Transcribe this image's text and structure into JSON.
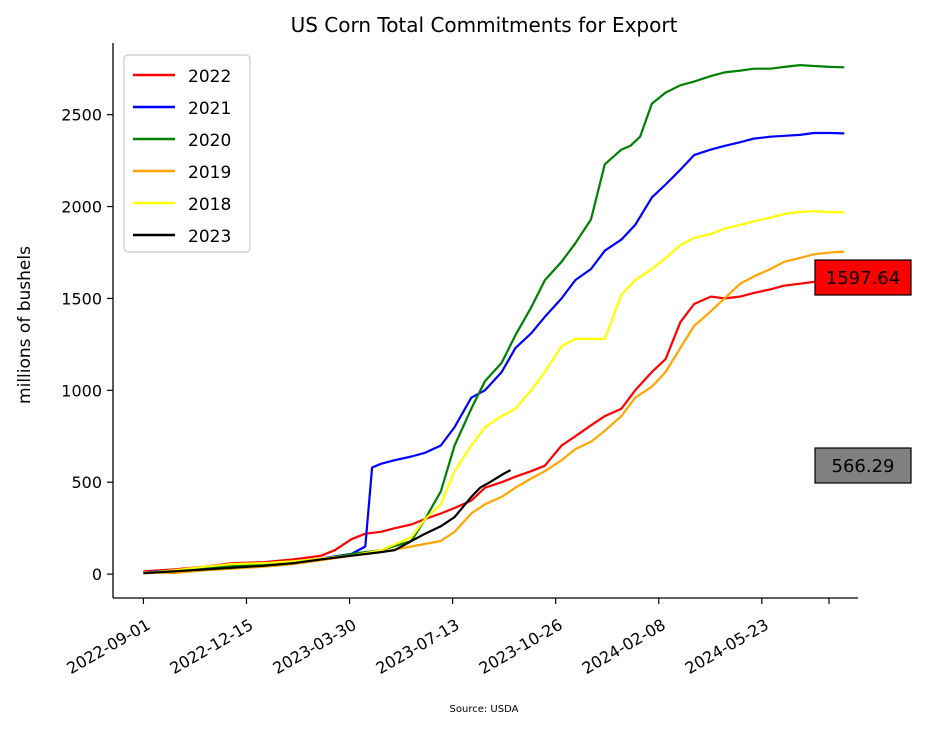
{
  "chart_data": {
    "type": "line",
    "title": "US Corn Total Commitments for Export",
    "xlabel": "",
    "ylabel": "millions of bushels",
    "source": "Source: USDA",
    "x_tick_labels": [
      "2022-09-01",
      "2022-12-15",
      "2023-03-30",
      "2023-07-13",
      "2023-10-26",
      "2024-02-08",
      "2024-05-23"
    ],
    "y_ticks": [
      0,
      500,
      1000,
      1500,
      2000,
      2500
    ],
    "xlim": [
      "2022-08-01",
      "2024-08-29"
    ],
    "ylim": [
      -130,
      2890
    ],
    "grid": false,
    "legend_location": "upper left",
    "annotations": [
      {
        "text": "1597.64",
        "color": "#ff0000",
        "value": 1597.64
      },
      {
        "text": "566.29",
        "color": "#808080",
        "value": 566.29
      }
    ],
    "series": [
      {
        "name": "2022",
        "color": "#ff0000",
        "x": [
          "2022-09-01",
          "2022-10-01",
          "2022-11-01",
          "2022-12-01",
          "2023-01-01",
          "2023-02-01",
          "2023-03-01",
          "2023-03-15",
          "2023-04-01",
          "2023-04-15",
          "2023-05-01",
          "2023-05-15",
          "2023-06-01",
          "2023-06-15",
          "2023-07-01",
          "2023-07-15",
          "2023-08-01",
          "2023-08-15",
          "2023-09-01",
          "2023-09-15",
          "2023-10-01",
          "2023-10-15",
          "2023-11-01",
          "2023-11-15",
          "2023-12-01",
          "2023-12-15",
          "2024-01-01",
          "2024-01-15",
          "2024-02-01",
          "2024-02-15",
          "2024-03-01",
          "2024-03-15",
          "2024-04-01",
          "2024-04-15",
          "2024-05-01",
          "2024-05-15",
          "2024-06-01",
          "2024-06-15",
          "2024-07-01",
          "2024-07-15",
          "2024-08-01",
          "2024-08-15"
        ],
        "values": [
          15,
          25,
          40,
          60,
          65,
          80,
          100,
          130,
          190,
          220,
          230,
          250,
          270,
          300,
          330,
          360,
          400,
          470,
          500,
          530,
          560,
          590,
          700,
          750,
          810,
          860,
          900,
          1000,
          1100,
          1170,
          1370,
          1470,
          1510,
          1500,
          1510,
          1530,
          1550,
          1570,
          1580,
          1590,
          1597,
          1598
        ]
      },
      {
        "name": "2021",
        "color": "#0000ff",
        "x": [
          "2022-09-01",
          "2022-10-01",
          "2022-11-01",
          "2022-12-01",
          "2023-01-01",
          "2023-02-01",
          "2023-03-01",
          "2023-04-01",
          "2023-04-15",
          "2023-04-22",
          "2023-05-01",
          "2023-05-15",
          "2023-06-01",
          "2023-06-15",
          "2023-07-01",
          "2023-07-15",
          "2023-08-01",
          "2023-08-15",
          "2023-09-01",
          "2023-09-15",
          "2023-10-01",
          "2023-10-15",
          "2023-11-01",
          "2023-11-15",
          "2023-12-01",
          "2023-12-15",
          "2024-01-01",
          "2024-01-15",
          "2024-02-01",
          "2024-02-15",
          "2024-03-01",
          "2024-03-15",
          "2024-04-01",
          "2024-04-15",
          "2024-05-01",
          "2024-05-15",
          "2024-06-01",
          "2024-06-15",
          "2024-07-01",
          "2024-07-15",
          "2024-08-01",
          "2024-08-15"
        ],
        "values": [
          10,
          20,
          35,
          50,
          60,
          70,
          85,
          110,
          150,
          580,
          600,
          620,
          640,
          660,
          700,
          800,
          960,
          1000,
          1100,
          1230,
          1310,
          1400,
          1500,
          1600,
          1660,
          1760,
          1820,
          1900,
          2050,
          2120,
          2200,
          2280,
          2310,
          2330,
          2350,
          2370,
          2380,
          2385,
          2390,
          2400,
          2400,
          2398
        ]
      },
      {
        "name": "2020",
        "color": "#008000",
        "x": [
          "2022-09-01",
          "2022-10-01",
          "2022-11-01",
          "2022-12-01",
          "2023-01-01",
          "2023-02-01",
          "2023-03-01",
          "2023-04-01",
          "2023-05-01",
          "2023-06-01",
          "2023-06-15",
          "2023-07-01",
          "2023-07-15",
          "2023-08-01",
          "2023-08-15",
          "2023-09-01",
          "2023-09-15",
          "2023-10-01",
          "2023-10-15",
          "2023-11-01",
          "2023-11-15",
          "2023-12-01",
          "2023-12-15",
          "2024-01-01",
          "2024-01-10",
          "2024-01-20",
          "2024-02-01",
          "2024-02-15",
          "2024-03-01",
          "2024-03-15",
          "2024-04-01",
          "2024-04-15",
          "2024-05-01",
          "2024-05-15",
          "2024-06-01",
          "2024-06-15",
          "2024-07-01",
          "2024-07-15",
          "2024-08-01",
          "2024-08-15"
        ],
        "values": [
          5,
          15,
          30,
          45,
          55,
          65,
          80,
          110,
          130,
          180,
          300,
          450,
          700,
          900,
          1050,
          1150,
          1300,
          1450,
          1600,
          1700,
          1800,
          1930,
          2230,
          2310,
          2330,
          2380,
          2560,
          2620,
          2660,
          2680,
          2710,
          2730,
          2740,
          2750,
          2750,
          2760,
          2770,
          2765,
          2760,
          2758
        ]
      },
      {
        "name": "2019",
        "color": "#ffa500",
        "x": [
          "2022-09-01",
          "2022-10-01",
          "2022-11-01",
          "2022-12-01",
          "2023-01-01",
          "2023-02-01",
          "2023-03-01",
          "2023-04-01",
          "2023-05-01",
          "2023-06-01",
          "2023-07-01",
          "2023-07-15",
          "2023-08-01",
          "2023-08-15",
          "2023-09-01",
          "2023-09-15",
          "2023-10-01",
          "2023-10-15",
          "2023-11-01",
          "2023-11-15",
          "2023-12-01",
          "2023-12-15",
          "2024-01-01",
          "2024-01-15",
          "2024-02-01",
          "2024-02-15",
          "2024-03-01",
          "2024-03-15",
          "2024-04-01",
          "2024-04-15",
          "2024-05-01",
          "2024-05-15",
          "2024-06-01",
          "2024-06-15",
          "2024-07-01",
          "2024-07-15",
          "2024-08-01",
          "2024-08-15"
        ],
        "values": [
          10,
          5,
          20,
          30,
          40,
          55,
          75,
          100,
          120,
          150,
          180,
          230,
          330,
          380,
          420,
          470,
          520,
          560,
          620,
          680,
          720,
          780,
          860,
          960,
          1020,
          1100,
          1230,
          1350,
          1430,
          1500,
          1580,
          1620,
          1660,
          1700,
          1720,
          1740,
          1750,
          1755
        ]
      },
      {
        "name": "2018",
        "color": "#ffff00",
        "x": [
          "2022-09-01",
          "2022-10-01",
          "2022-11-01",
          "2022-12-01",
          "2023-01-01",
          "2023-02-01",
          "2023-03-01",
          "2023-04-01",
          "2023-05-01",
          "2023-06-01",
          "2023-06-15",
          "2023-07-01",
          "2023-07-15",
          "2023-08-01",
          "2023-08-15",
          "2023-09-01",
          "2023-09-15",
          "2023-10-01",
          "2023-10-15",
          "2023-11-01",
          "2023-11-15",
          "2023-12-01",
          "2023-12-15",
          "2024-01-01",
          "2024-01-15",
          "2024-02-01",
          "2024-02-15",
          "2024-03-01",
          "2024-03-15",
          "2024-04-01",
          "2024-04-15",
          "2024-05-01",
          "2024-05-15",
          "2024-06-01",
          "2024-06-15",
          "2024-07-01",
          "2024-07-15",
          "2024-08-01",
          "2024-08-15"
        ],
        "values": [
          5,
          20,
          40,
          55,
          60,
          70,
          85,
          100,
          130,
          200,
          300,
          380,
          560,
          700,
          800,
          860,
          900,
          1000,
          1100,
          1240,
          1280,
          1280,
          1280,
          1520,
          1600,
          1660,
          1720,
          1790,
          1830,
          1850,
          1880,
          1900,
          1920,
          1940,
          1960,
          1970,
          1975,
          1970,
          1968
        ]
      },
      {
        "name": "2023",
        "color": "#000000",
        "x": [
          "2022-09-01",
          "2022-10-01",
          "2022-11-01",
          "2022-12-01",
          "2023-01-01",
          "2023-02-01",
          "2023-03-01",
          "2023-04-01",
          "2023-05-01",
          "2023-05-15",
          "2023-06-01",
          "2023-06-15",
          "2023-07-01",
          "2023-07-15",
          "2023-08-01",
          "2023-08-10",
          "2023-08-20",
          "2023-09-01",
          "2023-09-10"
        ],
        "values": [
          5,
          15,
          25,
          35,
          45,
          60,
          80,
          100,
          120,
          130,
          180,
          220,
          260,
          310,
          420,
          470,
          500,
          540,
          566
        ]
      }
    ]
  }
}
